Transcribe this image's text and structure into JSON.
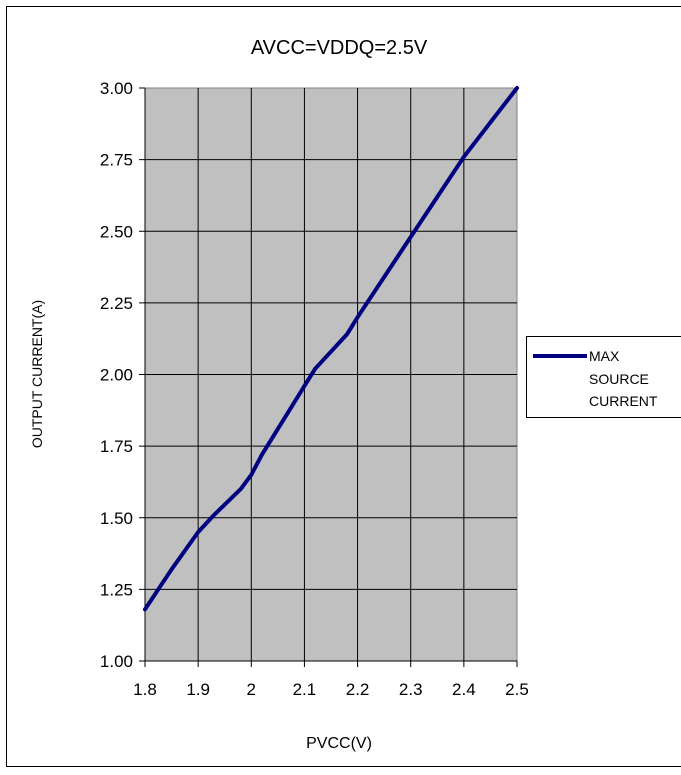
{
  "chart_data": {
    "type": "line",
    "title": "AVCC=VDDQ=2.5V",
    "xlabel": "PVCC(V)",
    "ylabel": "OUTPUT CURRENT(A)",
    "xlim": [
      1.8,
      2.5
    ],
    "ylim": [
      1.0,
      3.0
    ],
    "x_ticks": [
      1.8,
      1.9,
      2.0,
      2.1,
      2.2,
      2.3,
      2.4,
      2.5
    ],
    "x_tick_labels": [
      "1.8",
      "1.9",
      "2",
      "2.1",
      "2.2",
      "2.3",
      "2.4",
      "2.5"
    ],
    "y_ticks": [
      1.0,
      1.25,
      1.5,
      1.75,
      2.0,
      2.25,
      2.5,
      2.75,
      3.0
    ],
    "y_tick_labels": [
      "1.00",
      "1.25",
      "1.50",
      "1.75",
      "2.00",
      "2.25",
      "2.50",
      "2.75",
      "3.00"
    ],
    "x_grid_lines": [
      1.9,
      2.0,
      2.1,
      2.2,
      2.3,
      2.4
    ],
    "y_grid_lines": [
      1.25,
      1.5,
      1.75,
      2.0,
      2.25,
      2.5,
      2.75
    ],
    "grid": true,
    "plot_background": "#C0C0C0",
    "legend_position": "right",
    "series": [
      {
        "name": "MAX SOURCE CURRENT",
        "legend_lines": [
          "MAX",
          "SOURCE",
          "CURRENT"
        ],
        "color": "#000080",
        "x": [
          1.8,
          1.85,
          1.9,
          1.93,
          1.98,
          2.0,
          2.02,
          2.06,
          2.1,
          2.12,
          2.18,
          2.2,
          2.25,
          2.3,
          2.35,
          2.4,
          2.45,
          2.5
        ],
        "y": [
          1.18,
          1.32,
          1.45,
          1.51,
          1.6,
          1.65,
          1.72,
          1.84,
          1.96,
          2.02,
          2.14,
          2.2,
          2.34,
          2.48,
          2.62,
          2.76,
          2.88,
          3.0
        ]
      }
    ]
  }
}
